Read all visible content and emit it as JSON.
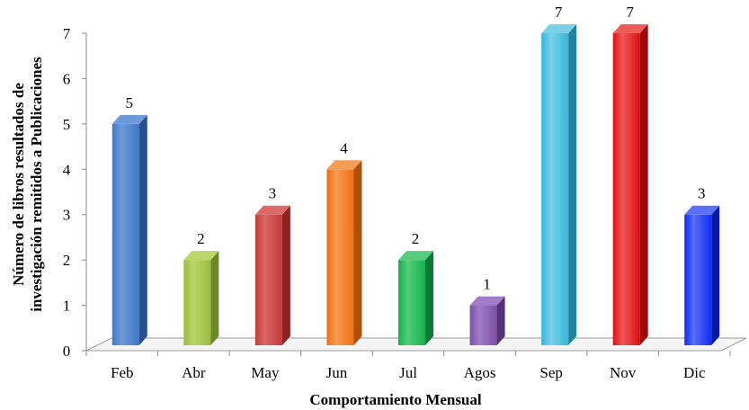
{
  "chart_data": {
    "type": "bar",
    "title": "",
    "xlabel": "Comportamiento Mensual",
    "ylabel_lines": [
      "Número de libros resultados de",
      "investigación remitidos a Publicaciones"
    ],
    "categories": [
      "Feb",
      "Abr",
      "May",
      "Jun",
      "Jul",
      "Agos",
      "Sep",
      "Nov",
      "Dic"
    ],
    "values": [
      5,
      2,
      3,
      4,
      2,
      1,
      7,
      7,
      3
    ],
    "data_labels": [
      "5",
      "2",
      "3",
      "4",
      "2",
      "1",
      "7",
      "7",
      "3"
    ],
    "yticks": [
      "0",
      "1",
      "2",
      "3",
      "4",
      "5",
      "6",
      "7"
    ],
    "ylim": [
      0,
      7
    ],
    "grid": false,
    "legend": "none",
    "colors": [
      {
        "front": "#3f77c6",
        "side": "#26508f",
        "top": "#6d9ad9"
      },
      {
        "front": "#9bbb3f",
        "side": "#6a8826",
        "top": "#bcd66a"
      },
      {
        "front": "#c23a3a",
        "side": "#8c2222",
        "top": "#dc6868"
      },
      {
        "front": "#ee7010",
        "side": "#b04f08",
        "top": "#f59c55"
      },
      {
        "front": "#14b04c",
        "side": "#0a7b32",
        "top": "#55cc7e"
      },
      {
        "front": "#7c4fa5",
        "side": "#553276",
        "top": "#a27bc6"
      },
      {
        "front": "#36b4d8",
        "side": "#1f84a2",
        "top": "#7bd0e8"
      },
      {
        "front": "#dd0f0f",
        "side": "#9e0707",
        "top": "#ef5a5a"
      },
      {
        "front": "#0f2cf0",
        "side": "#0818a8",
        "top": "#5a70f6"
      }
    ]
  }
}
